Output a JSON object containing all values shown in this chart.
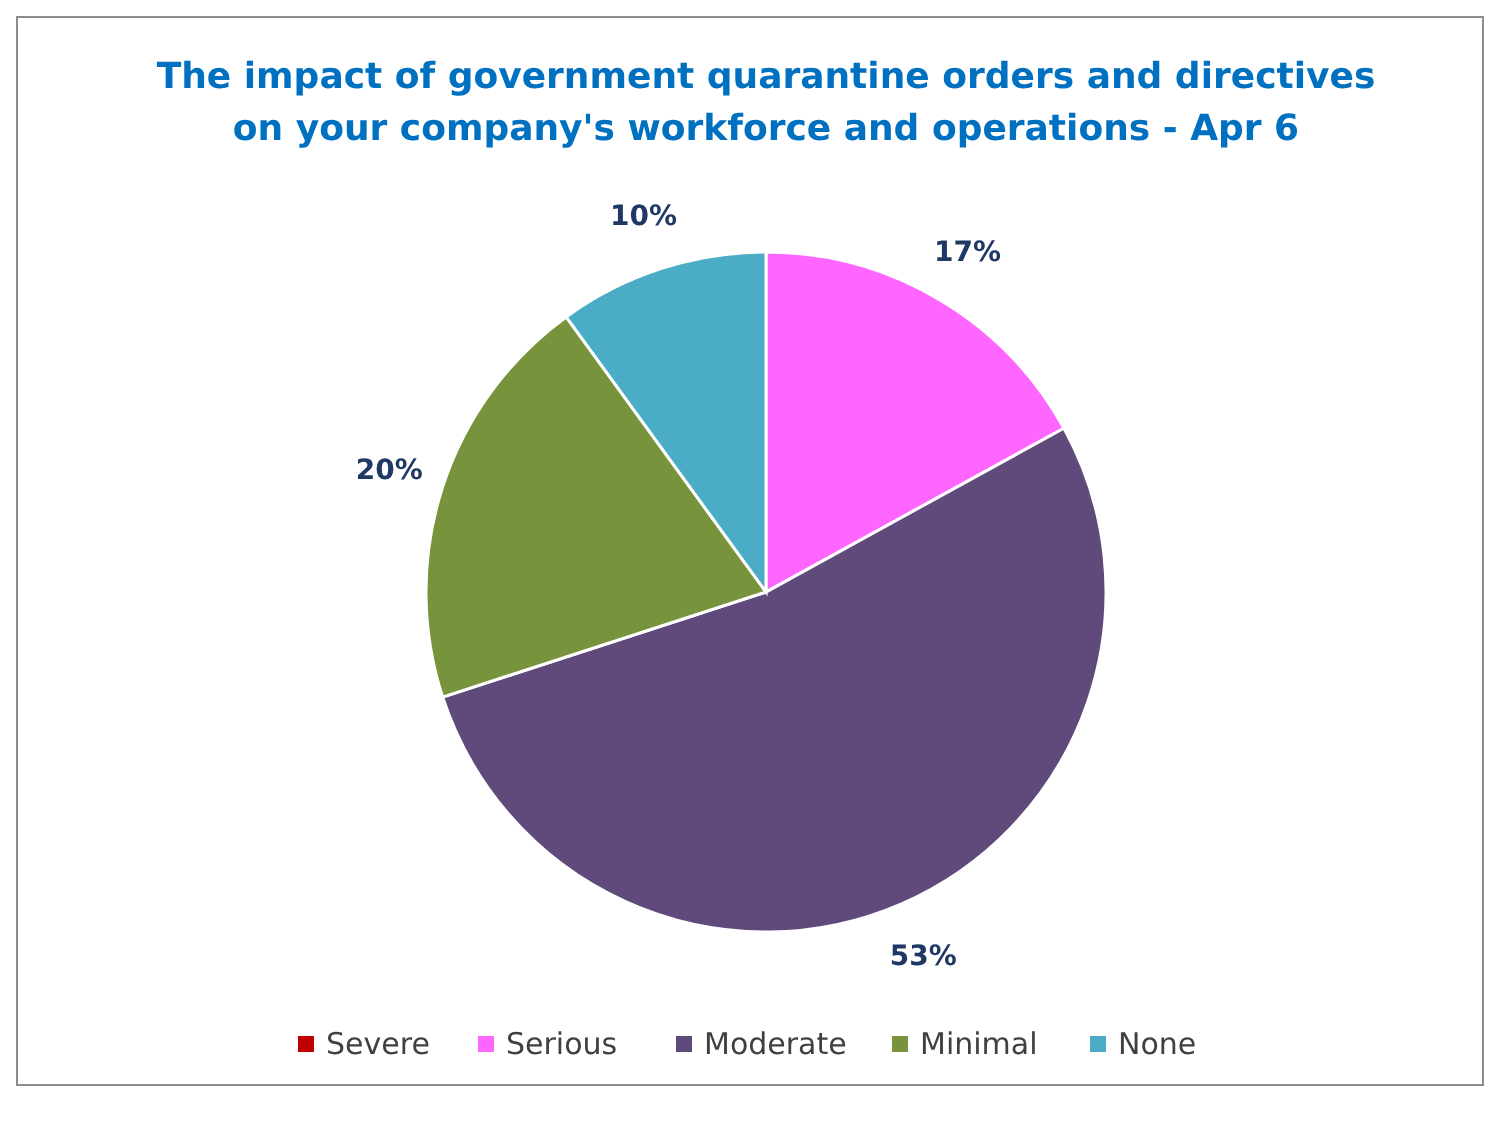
{
  "chart_data": {
    "type": "pie",
    "title": "The impact of government quarantine orders and directives\non your company's workforce and operations - Apr 6",
    "categories": [
      "Severe",
      "Serious",
      "Moderate",
      "Minimal",
      "None"
    ],
    "values": [
      0,
      17,
      53,
      20,
      10
    ],
    "colors": [
      "#c00000",
      "#ff66ff",
      "#604a7b",
      "#77933c",
      "#4bacc6"
    ],
    "value_labels": [
      null,
      "17%",
      "53%",
      "20%",
      "10%"
    ],
    "legend": "bottom"
  }
}
